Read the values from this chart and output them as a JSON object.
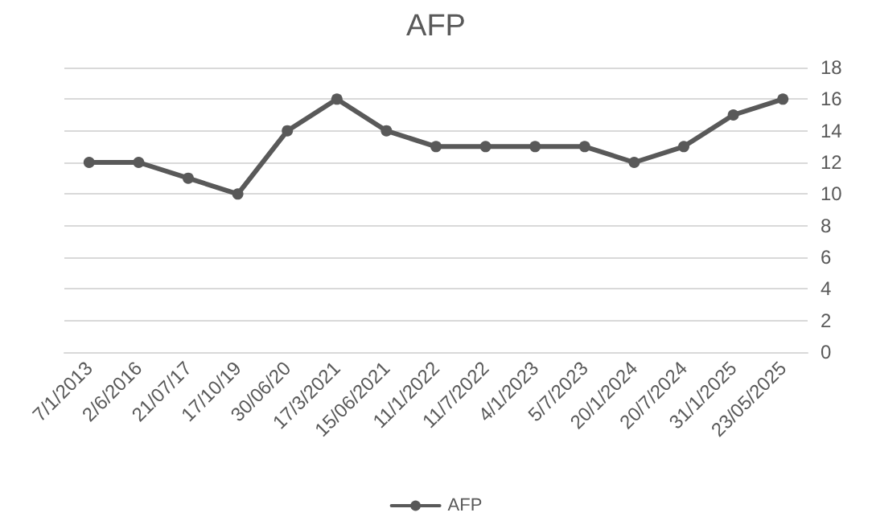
{
  "chart_data": {
    "type": "line",
    "title": "AFP",
    "categories": [
      "7/1/2013",
      "2/6/2016",
      "21/07/17",
      "17/10/19",
      "30/06/20",
      "17/3/2021",
      "15/06/2021",
      "11/1/2022",
      "11/7/2022",
      "4/1/2023",
      "5/7/2023",
      "20/1/2024",
      "20/7/2024",
      "31/1/2025",
      "23/05/2025"
    ],
    "series": [
      {
        "name": "AFP",
        "color": "#595959",
        "values": [
          12,
          12,
          11,
          10,
          14,
          16,
          14,
          13,
          13,
          13,
          13,
          12,
          13,
          15,
          16
        ]
      }
    ],
    "ylim": [
      0,
      18
    ],
    "yticks": [
      0,
      2,
      4,
      6,
      8,
      10,
      12,
      14,
      16,
      18
    ],
    "grid": "y",
    "legend": "bottom",
    "marker": "circle",
    "line_style": "solid"
  }
}
